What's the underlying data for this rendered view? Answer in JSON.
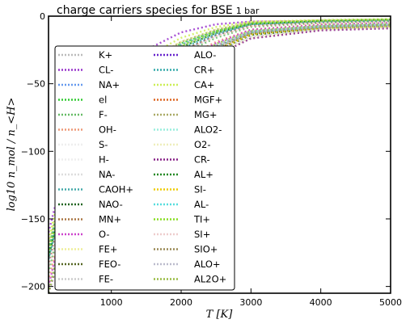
{
  "chart_data": {
    "type": "line",
    "title_main": "charge carriers species for BSE",
    "title_suffix": "1 bar",
    "xlabel": "T [K]",
    "ylabel": "log10 n_mol / n_<H>",
    "xlim": [
      100,
      5000
    ],
    "ylim": [
      -205,
      0
    ],
    "xticks": [
      1000,
      2000,
      3000,
      4000,
      5000
    ],
    "yticks": [
      0,
      -50,
      -100,
      -150,
      -200
    ],
    "grid": false,
    "legend_position": "left",
    "legend_columns": 2,
    "series": [
      {
        "name": "K+",
        "color": "#bbbbbb",
        "values": [
          -178,
          -92,
          -58,
          -38,
          -22,
          -12,
          -5,
          -3,
          -2.5
        ]
      },
      {
        "name": "CL-",
        "color": "#9933cc",
        "values": [
          -160,
          -78,
          -45,
          -25,
          -12,
          -6,
          -4,
          -3.5,
          -3
        ]
      },
      {
        "name": "NA+",
        "color": "#6699ee",
        "values": [
          -182,
          -96,
          -62,
          -42,
          -26,
          -14,
          -6,
          -4,
          -3
        ]
      },
      {
        "name": "el",
        "color": "#33cc33",
        "values": [
          -172,
          -88,
          -55,
          -35,
          -20,
          -11,
          -5,
          -3,
          -2.2
        ]
      },
      {
        "name": "F-",
        "color": "#66bb66",
        "values": [
          -190,
          -102,
          -66,
          -45,
          -28,
          -16,
          -8,
          -5,
          -4
        ]
      },
      {
        "name": "OH-",
        "color": "#ee9977",
        "values": [
          -196,
          -110,
          -72,
          -50,
          -32,
          -19,
          -10,
          -6,
          -5
        ]
      },
      {
        "name": "S-",
        "color": "#eeeeee",
        "values": [
          -200,
          -115,
          -76,
          -53,
          -35,
          -21,
          -11,
          -7,
          -6
        ]
      },
      {
        "name": "H-",
        "color": "#eeeeee",
        "values": [
          -205,
          -120,
          -80,
          -56,
          -37,
          -23,
          -12,
          -8,
          -6.5
        ]
      },
      {
        "name": "NA-",
        "color": "#dddddd",
        "values": [
          -205,
          -124,
          -83,
          -58,
          -39,
          -24,
          -13,
          -8.5,
          -7
        ]
      },
      {
        "name": "CAOH+",
        "color": "#44aaaa",
        "values": [
          -175,
          -90,
          -57,
          -37,
          -21,
          -11,
          -5,
          -3.5,
          -2.8
        ]
      },
      {
        "name": "NAO-",
        "color": "#226622",
        "values": [
          -205,
          -128,
          -86,
          -60,
          -41,
          -26,
          -14,
          -9,
          -7.5
        ]
      },
      {
        "name": "MN+",
        "color": "#aa7744",
        "values": [
          -185,
          -98,
          -63,
          -42,
          -26,
          -14,
          -7,
          -4.5,
          -3.5
        ]
      },
      {
        "name": "O-",
        "color": "#cc44cc",
        "values": [
          -200,
          -112,
          -74,
          -51,
          -33,
          -20,
          -10,
          -6.5,
          -5
        ]
      },
      {
        "name": "FE+",
        "color": "#eeee99",
        "values": [
          -168,
          -84,
          -52,
          -33,
          -19,
          -10,
          -4.5,
          -3,
          -2.4
        ]
      },
      {
        "name": "FEO-",
        "color": "#556622",
        "values": [
          -205,
          -126,
          -84,
          -59,
          -40,
          -25,
          -13,
          -8.7,
          -7.2
        ]
      },
      {
        "name": "FE-",
        "color": "#cccccc",
        "values": [
          -205,
          -130,
          -88,
          -62,
          -42,
          -27,
          -15,
          -9.5,
          -8
        ]
      },
      {
        "name": "ALO-",
        "color": "#6622cc",
        "values": [
          -205,
          -118,
          -78,
          -54,
          -36,
          -22,
          -11.5,
          -7.5,
          -6.2
        ]
      },
      {
        "name": "CR+",
        "color": "#33aaaa",
        "values": [
          -180,
          -94,
          -60,
          -40,
          -24,
          -13,
          -6,
          -4,
          -3.2
        ]
      },
      {
        "name": "CA+",
        "color": "#ccee55",
        "values": [
          -165,
          -82,
          -50,
          -30,
          -16,
          -8,
          -4,
          -3,
          -2.3
        ]
      },
      {
        "name": "MGF+",
        "color": "#dd6622",
        "values": [
          -205,
          -122,
          -81,
          -57,
          -38,
          -23.5,
          -12.5,
          -8.2,
          -6.8
        ]
      },
      {
        "name": "MG+",
        "color": "#aaaa66",
        "values": [
          -170,
          -86,
          -54,
          -34,
          -19,
          -10,
          -4.8,
          -3.2,
          -2.5
        ]
      },
      {
        "name": "ALO2-",
        "color": "#99eedd",
        "values": [
          -205,
          -116,
          -77,
          -53.5,
          -35.5,
          -21.5,
          -11.2,
          -7.3,
          -6
        ]
      },
      {
        "name": "O2-",
        "color": "#eeeebb",
        "values": [
          -205,
          -132,
          -90,
          -64,
          -44,
          -28,
          -16,
          -10,
          -8.5
        ]
      },
      {
        "name": "CR-",
        "color": "#882288",
        "values": [
          -205,
          -134,
          -92,
          -65,
          -45,
          -29,
          -16.5,
          -10.5,
          -9
        ]
      },
      {
        "name": "AL+",
        "color": "#228822",
        "values": [
          -178,
          -93,
          -59,
          -39,
          -23,
          -12.5,
          -5.8,
          -3.8,
          -3
        ]
      },
      {
        "name": "SI-",
        "color": "#eecc00",
        "values": [
          -205,
          -126,
          -85,
          -60,
          -40.5,
          -25.5,
          -13.5,
          -8.8,
          -7.3
        ]
      },
      {
        "name": "AL-",
        "color": "#55dddd",
        "values": [
          -205,
          -121,
          -80.5,
          -56.5,
          -37.5,
          -23,
          -12.2,
          -8,
          -6.7
        ]
      },
      {
        "name": "TI+",
        "color": "#88dd22",
        "values": [
          -176,
          -91,
          -57.5,
          -37.5,
          -22,
          -11.5,
          -5.4,
          -3.5,
          -2.7
        ]
      },
      {
        "name": "SI+",
        "color": "#eecccc",
        "values": [
          -188,
          -100,
          -64,
          -43,
          -27,
          -15,
          -7.5,
          -4.8,
          -3.8
        ]
      },
      {
        "name": "SIO+",
        "color": "#998855",
        "values": [
          -205,
          -119,
          -79,
          -55,
          -36.5,
          -22.5,
          -12,
          -7.8,
          -6.4
        ]
      },
      {
        "name": "ALO+",
        "color": "#bbbbcc",
        "values": [
          -205,
          -117,
          -77.5,
          -54,
          -36,
          -22,
          -11.8,
          -7.6,
          -6.3
        ]
      },
      {
        "name": "AL2O+",
        "color": "#99bb44",
        "values": [
          -205,
          -114,
          -75,
          -52,
          -34,
          -20.5,
          -10.8,
          -7,
          -5.8
        ]
      }
    ],
    "x": [
      100,
      500,
      1000,
      1500,
      2000,
      2500,
      3000,
      4000,
      5000
    ]
  }
}
